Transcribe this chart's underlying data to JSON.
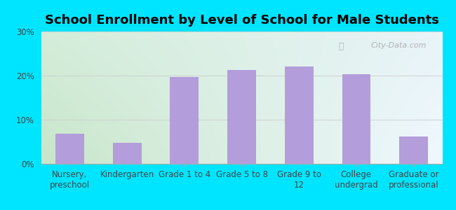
{
  "title": "School Enrollment by Level of School for Male Students",
  "categories": [
    "Nursery,\npreschool",
    "Kindergarten",
    "Grade 1 to 4",
    "Grade 5 to 8",
    "Grade 9 to\n12",
    "College\nundergrad",
    "Graduate or\nprofessional"
  ],
  "values": [
    6.8,
    4.7,
    19.7,
    21.3,
    22.0,
    20.3,
    6.2
  ],
  "bar_color": "#b39ddb",
  "background_outer": "#00e5ff",
  "background_inner_topleft": "#d4edda",
  "background_inner_topright": "#e8f4f8",
  "background_inner_bottomleft": "#c8e6c9",
  "background_inner_bottomright": "#f0f8ff",
  "ylim": [
    0,
    30
  ],
  "yticks": [
    0,
    10,
    20,
    30
  ],
  "ytick_labels": [
    "0%",
    "10%",
    "20%",
    "30%"
  ],
  "title_fontsize": 13,
  "tick_fontsize": 8.5,
  "watermark": "City-Data.com",
  "grid_color": "#cccccc",
  "bar_width": 0.5
}
